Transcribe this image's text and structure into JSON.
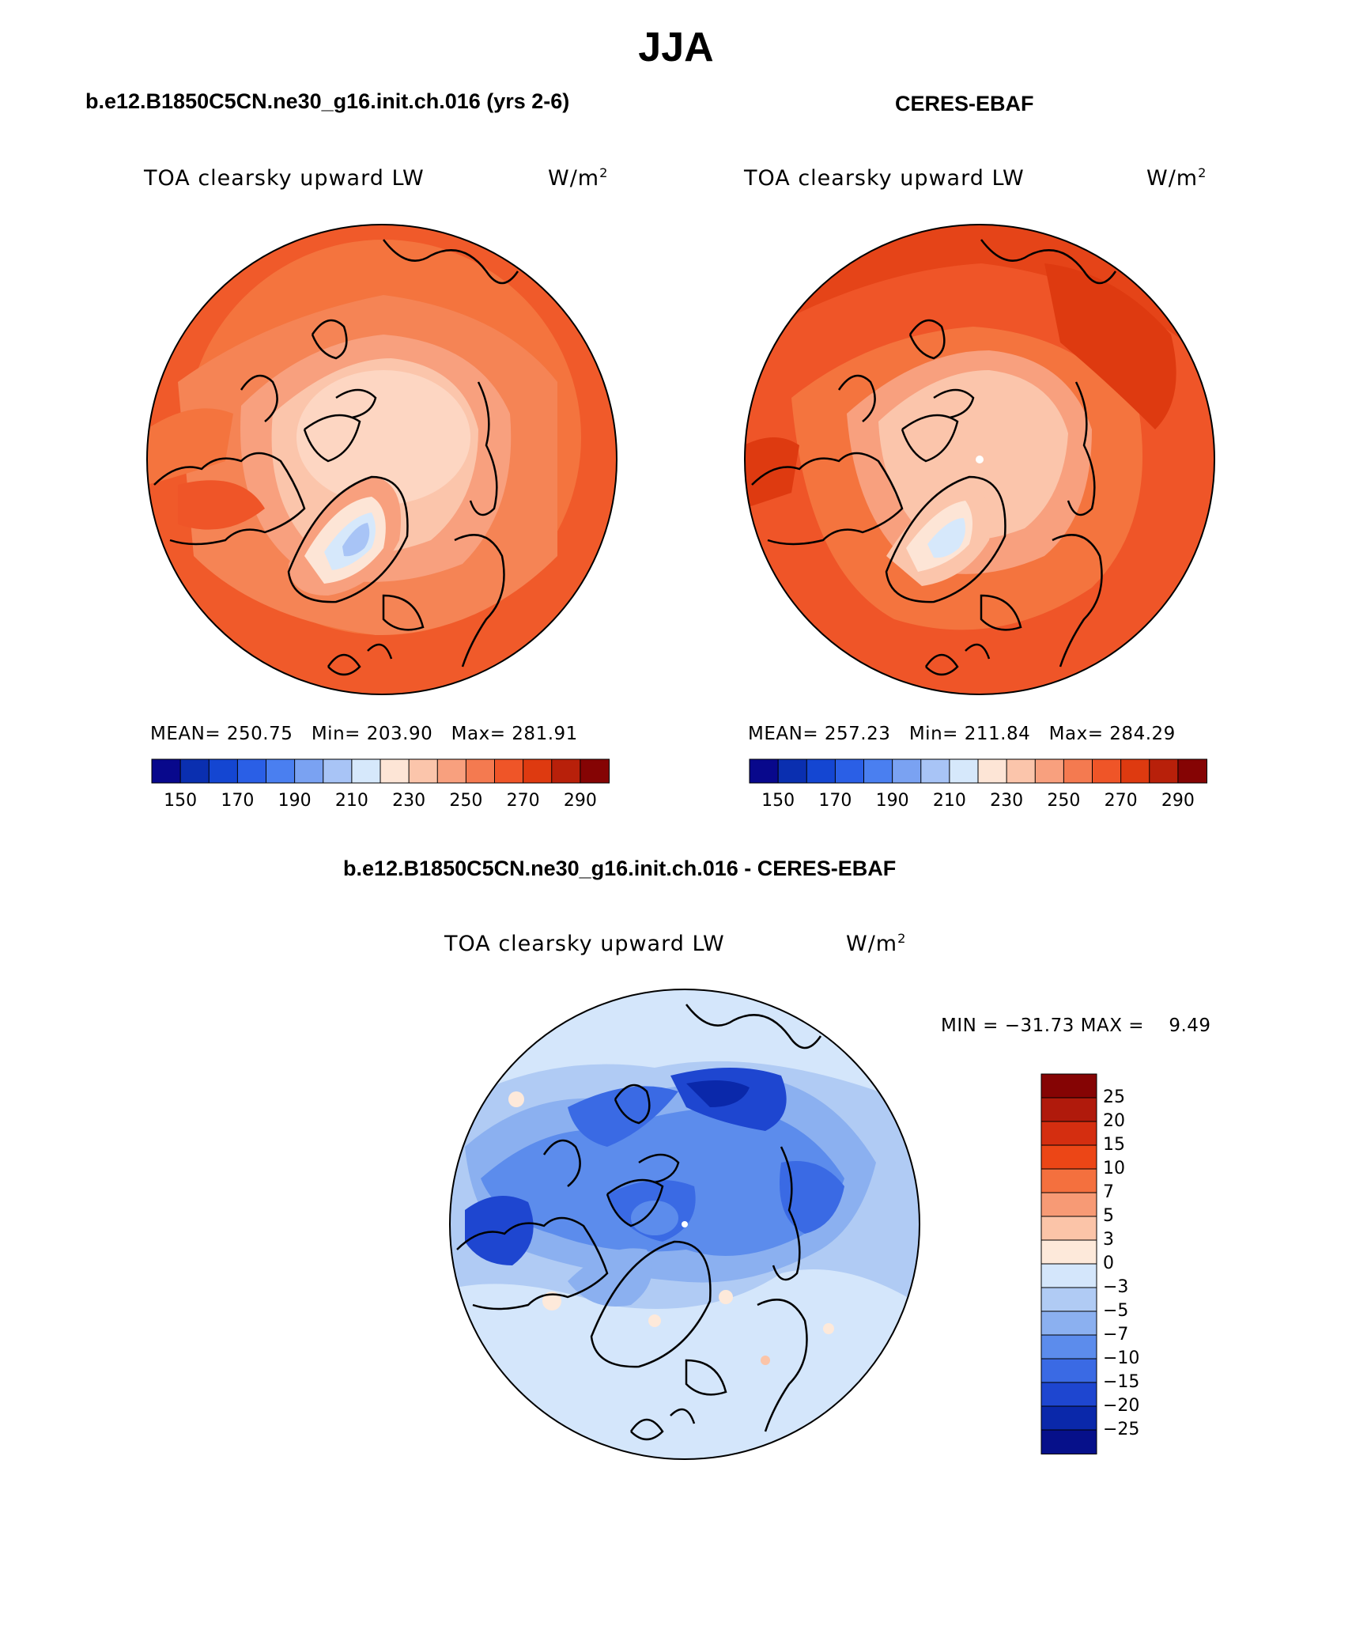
{
  "title": "JJA",
  "panels": [
    {
      "case_title": "b.e12.B1850C5CN.ne30_g16.init.ch.016 (yrs 2-6)",
      "variable": "TOA clearsky upward LW",
      "units_base": "W/m",
      "units_exp": "2",
      "stats": {
        "mean_label": "MEAN=",
        "mean": "250.75",
        "min_label": "Min=",
        "min": "203.90",
        "max_label": "Max=",
        "max": "281.91"
      }
    },
    {
      "case_title": "CERES-EBAF",
      "variable": "TOA clearsky upward LW",
      "units_base": "W/m",
      "units_exp": "2",
      "stats": {
        "mean_label": "MEAN=",
        "mean": "257.23",
        "min_label": "Min=",
        "min": "211.84",
        "max_label": "Max=",
        "max": "284.29"
      }
    }
  ],
  "horizontal_colorbar": {
    "ticks": [
      "150",
      "170",
      "190",
      "210",
      "230",
      "250",
      "270",
      "290"
    ],
    "colors": [
      "#08088c",
      "#0a2fb0",
      "#1446d2",
      "#2a5fe6",
      "#4a7ff0",
      "#7aa2f2",
      "#a8c4f6",
      "#d6e8fb",
      "#fde5d6",
      "#fbc5ab",
      "#f8a07e",
      "#f47a50",
      "#ef5528",
      "#de3a10",
      "#b8200a",
      "#850404"
    ]
  },
  "difference": {
    "title": "b.e12.B1850C5CN.ne30_g16.init.ch.016 - CERES-EBAF",
    "variable": "TOA clearsky upward LW",
    "units_base": "W/m",
    "units_exp": "2",
    "min_max_text": "MIN = −31.73 MAX =    9.49",
    "colorbar": {
      "ticks": [
        "25",
        "20",
        "15",
        "10",
        "7",
        "5",
        "3",
        "0",
        "−3",
        "−5",
        "−7",
        "−10",
        "−15",
        "−20",
        "−25"
      ],
      "colors_top_to_bottom": [
        "#850404",
        "#b01a0c",
        "#d42e10",
        "#ec4616",
        "#f4703e",
        "#f79a75",
        "#fbc4a8",
        "#fde9da",
        "#d4e6fb",
        "#b0cbf4",
        "#8bb0f0",
        "#5c8cec",
        "#3a6ae4",
        "#1e46d0",
        "#0a28aa",
        "#06108a"
      ]
    }
  },
  "colors": {
    "background": "#ffffff",
    "text": "#000000"
  }
}
